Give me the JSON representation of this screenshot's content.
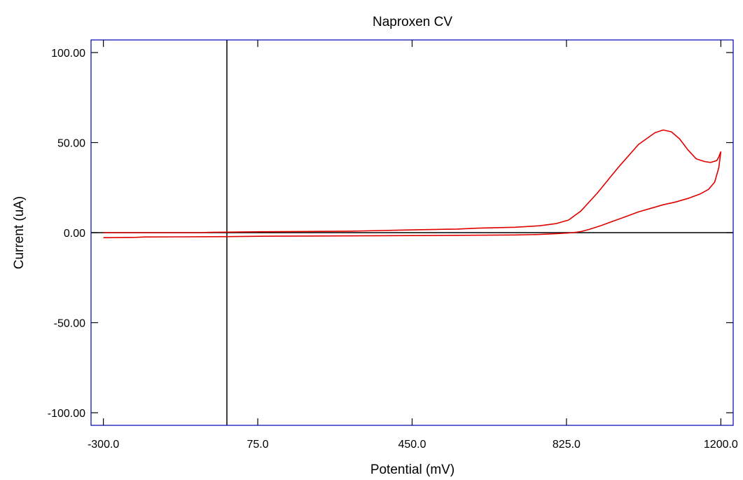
{
  "chart_data": {
    "type": "line",
    "title": "Naproxen CV",
    "xlabel": "Potential (mV)",
    "ylabel": "Current (uA)",
    "xlim": [
      -330,
      1230
    ],
    "ylim": [
      -107,
      107
    ],
    "x_ticks": [
      -300,
      75,
      450,
      825,
      1200
    ],
    "x_tick_labels": [
      "-300.0",
      "75.0",
      "450.0",
      "825.0",
      "1200.0"
    ],
    "y_ticks": [
      100,
      50,
      0,
      -50,
      -100
    ],
    "y_tick_labels": [
      "100.00",
      "50.00",
      "0.00",
      "-50.00",
      "-100.00"
    ],
    "grid": false,
    "legend": "none",
    "frame_color": "#0000b4",
    "series_color": "#e00000",
    "reference_lines": {
      "horizontal_y": 0,
      "vertical_x": 0
    },
    "series": [
      {
        "x": [
          -300,
          -70,
          -40,
          85,
          300,
          450,
          560,
          610,
          700,
          760,
          800,
          830,
          860,
          900,
          950,
          1000,
          1040,
          1060,
          1080,
          1100,
          1120,
          1140,
          1160,
          1175,
          1190,
          1195,
          1200
        ],
        "y": [
          0.0,
          0.0,
          0.2,
          0.5,
          0.8,
          1.5,
          2.0,
          2.5,
          3.0,
          3.8,
          5.0,
          7.0,
          12.0,
          22.0,
          36.0,
          49.0,
          55.5,
          57.0,
          56.0,
          52.0,
          46.0,
          41.0,
          39.5,
          39.0,
          40.0,
          42.0,
          45.0
        ]
      },
      {
        "x": [
          1200,
          1195,
          1185,
          1170,
          1150,
          1120,
          1090,
          1060,
          1030,
          1000,
          970,
          940,
          910,
          880,
          860,
          840,
          830,
          800,
          760,
          700,
          500,
          100,
          0,
          -200,
          -220,
          -300
        ],
        "y": [
          45.0,
          36.0,
          28.0,
          24.0,
          21.5,
          19.0,
          17.0,
          15.5,
          13.5,
          11.5,
          9.0,
          6.5,
          4.0,
          1.8,
          0.6,
          0.0,
          -0.2,
          -0.6,
          -1.0,
          -1.3,
          -1.6,
          -2.0,
          -2.2,
          -2.4,
          -2.6,
          -2.8
        ]
      }
    ]
  }
}
